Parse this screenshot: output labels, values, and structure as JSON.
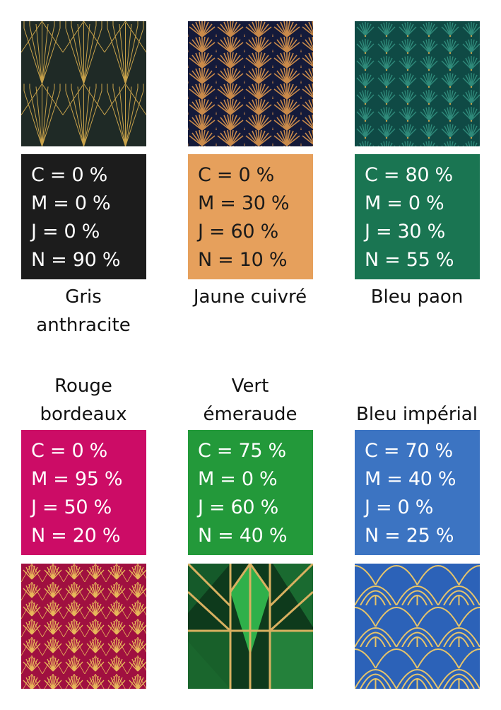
{
  "colors": [
    {
      "name_lines": [
        "Gris",
        "anthracite"
      ],
      "swatch_color": "#1c1c1c",
      "cmjn": [
        "C = 0 %",
        "M = 0 %",
        "J = 0 %",
        "N = 90 %"
      ],
      "pattern_icon": "art-deco-fan-lines-pattern",
      "pattern_colors": {
        "background": "#1f2a26",
        "lines": "#c8a24a"
      }
    },
    {
      "name_lines": [
        "Jaune cuivré"
      ],
      "swatch_color": "#e6a05c",
      "cmjn": [
        "C = 0 %",
        "M = 30 %",
        "J = 60 %",
        "N = 10 %"
      ],
      "pattern_icon": "art-deco-scallop-fan-pattern",
      "pattern_colors": {
        "background": "#141a3a",
        "lines": "#c98a4a"
      }
    },
    {
      "name_lines": [
        "Bleu paon"
      ],
      "swatch_color": "#1a7552",
      "cmjn": [
        "C = 80 %",
        "M = 0 %",
        "J = 30 %",
        "N = 55 %"
      ],
      "pattern_icon": "peacock-fan-pattern",
      "pattern_colors": {
        "background": "#0f4a45",
        "lines": "#2f8a7a"
      }
    },
    {
      "name_lines": [
        "Rouge",
        "bordeaux"
      ],
      "swatch_color": "#cc0c66",
      "cmjn": [
        "C = 0 %",
        "M = 95 %",
        "J = 50 %",
        "N = 20 %"
      ],
      "pattern_icon": "art-deco-shell-pattern",
      "pattern_colors": {
        "background": "#a01040",
        "lines": "#e8b85a"
      }
    },
    {
      "name_lines": [
        "Vert",
        "émeraude"
      ],
      "swatch_color": "#23993a",
      "cmjn": [
        "C = 75 %",
        "M = 0 %",
        "J = 60 %",
        "N = 40 %"
      ],
      "pattern_icon": "emerald-geometric-pattern",
      "pattern_colors": {
        "background": "#0e3a1c",
        "lines": "#d8b060"
      }
    },
    {
      "name_lines": [
        "Bleu impérial"
      ],
      "swatch_color": "#3c74c2",
      "cmjn": [
        "C = 70 %",
        "M = 40 %",
        "J = 0 %",
        "N = 25 %"
      ],
      "pattern_icon": "art-deco-arches-pattern",
      "pattern_colors": {
        "background": "#2c62b8",
        "lines": "#e6c46a"
      }
    }
  ]
}
